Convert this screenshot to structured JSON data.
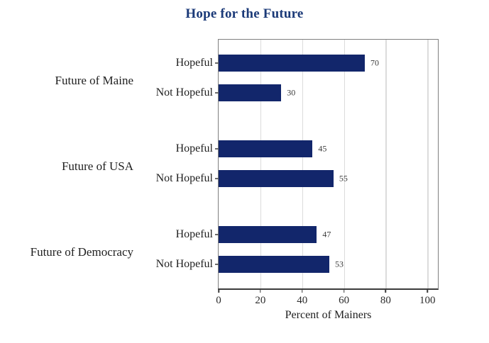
{
  "chart_data": {
    "type": "bar",
    "orientation": "horizontal",
    "title": "Hope for the Future",
    "xlabel": "Percent of Mainers",
    "ylabel": "",
    "xlim": [
      0,
      105
    ],
    "xticks": [
      0,
      20,
      40,
      60,
      80,
      100
    ],
    "grid": true,
    "legend": "none",
    "groups": [
      {
        "label": "Future of Maine",
        "bars": [
          {
            "label": "Hopeful",
            "value": 70
          },
          {
            "label": "Not Hopeful",
            "value": 30
          }
        ]
      },
      {
        "label": "Future of USA",
        "bars": [
          {
            "label": "Hopeful",
            "value": 45
          },
          {
            "label": "Not Hopeful",
            "value": 55
          }
        ]
      },
      {
        "label": "Future of Democracy",
        "bars": [
          {
            "label": "Hopeful",
            "value": 47
          },
          {
            "label": "Not Hopeful",
            "value": 53
          }
        ]
      }
    ]
  },
  "colors": {
    "title": "#1b3a78",
    "bar": "#12266b",
    "grid": "#dcdcdc",
    "plot_border": "#7f7f7f",
    "axis": "#3c3c3c",
    "tick": "#3c3c3c",
    "text": "#1f1f1f",
    "value_text": "#3a3a3a"
  }
}
